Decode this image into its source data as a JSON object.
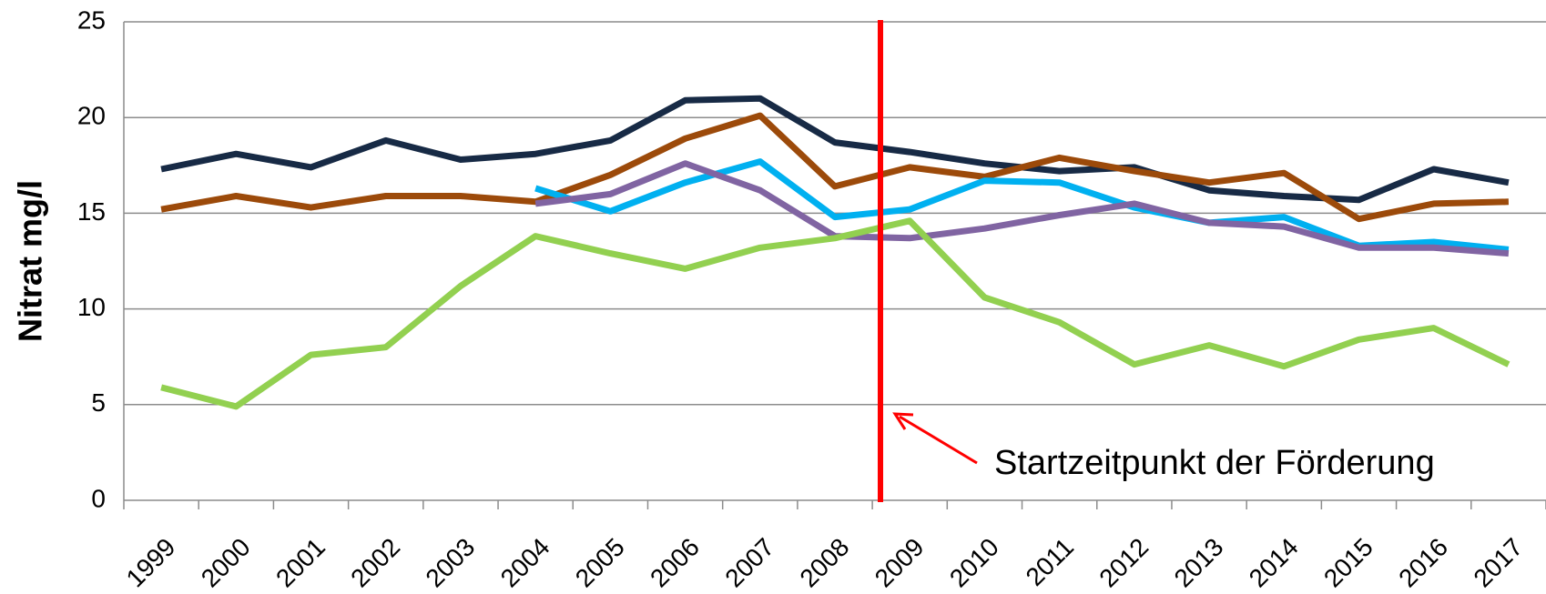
{
  "chart_data": {
    "type": "line",
    "y_label": "Nitrat mg/l",
    "annotation": "Startzeitpunkt der Förderung",
    "categories": [
      "1999",
      "2000",
      "2001",
      "2002",
      "2003",
      "2004",
      "2005",
      "2006",
      "2007",
      "2008",
      "2009",
      "2010",
      "2011",
      "2012",
      "2013",
      "2014",
      "2015",
      "2016",
      "2017"
    ],
    "series": [
      {
        "color": "#172a45",
        "values": [
          17.3,
          18.1,
          17.4,
          18.8,
          17.8,
          18.1,
          18.8,
          20.9,
          21.0,
          18.7,
          18.2,
          17.6,
          17.2,
          17.4,
          16.2,
          15.9,
          15.7,
          17.3,
          16.6
        ]
      },
      {
        "color": "#9c4a0a",
        "values": [
          15.2,
          15.9,
          15.3,
          15.9,
          15.9,
          15.6,
          17.0,
          18.9,
          20.1,
          16.4,
          17.4,
          16.9,
          17.9,
          17.2,
          16.6,
          17.1,
          14.7,
          15.5,
          15.6
        ]
      },
      {
        "color": "#00b0f0",
        "values": [
          null,
          null,
          null,
          null,
          null,
          16.3,
          15.1,
          16.6,
          17.7,
          14.8,
          15.2,
          16.7,
          16.6,
          15.3,
          14.5,
          14.8,
          13.3,
          13.5,
          13.1
        ]
      },
      {
        "color": "#8064a2",
        "values": [
          null,
          null,
          null,
          null,
          null,
          15.5,
          16.0,
          17.6,
          16.2,
          13.8,
          13.7,
          14.2,
          14.9,
          15.5,
          14.5,
          14.3,
          13.2,
          13.2,
          12.9
        ]
      },
      {
        "color": "#92d050",
        "values": [
          5.9,
          4.9,
          7.6,
          8.0,
          11.2,
          13.8,
          12.9,
          12.1,
          13.2,
          13.7,
          14.6,
          10.6,
          9.3,
          7.1,
          8.1,
          7.0,
          8.4,
          9.0,
          7.1
        ]
      }
    ],
    "ylim": [
      0,
      25
    ],
    "yticks": [
      0,
      5,
      10,
      15,
      20,
      25
    ],
    "grid": true
  }
}
